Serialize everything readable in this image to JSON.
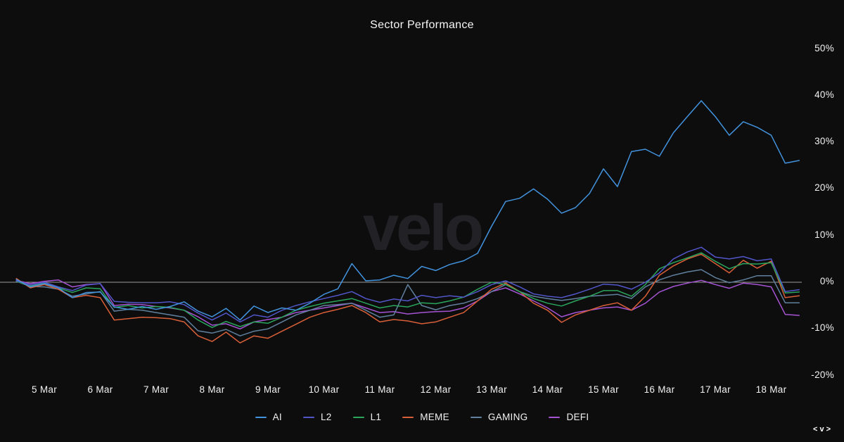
{
  "header": {
    "title": "Sector Performance"
  },
  "watermark_text": "velo",
  "brand_mark_text": "<v>",
  "theme": {
    "background": "#0d0d0e",
    "text_color": "#f2f2f2",
    "zero_line_color": "#9a9a9a",
    "watermark_color": "#222226"
  },
  "chart_data": {
    "type": "line",
    "title": "Sector Performance",
    "xlabel": "",
    "ylabel": "",
    "y_unit": "%",
    "ylim": [
      -20,
      50
    ],
    "grid": "zero-line-only",
    "legend_position": "bottom-center",
    "y_ticks": [
      50,
      40,
      30,
      20,
      10,
      0,
      -10,
      -20
    ],
    "x_ticks": [
      {
        "label": "5 Mar",
        "day": 5
      },
      {
        "label": "6 Mar",
        "day": 6
      },
      {
        "label": "7 Mar",
        "day": 7
      },
      {
        "label": "8 Mar",
        "day": 8
      },
      {
        "label": "9 Mar",
        "day": 9
      },
      {
        "label": "10 Mar",
        "day": 10
      },
      {
        "label": "11 Mar",
        "day": 11
      },
      {
        "label": "12 Mar",
        "day": 12
      },
      {
        "label": "13 Mar",
        "day": 13
      },
      {
        "label": "14 Mar",
        "day": 14
      },
      {
        "label": "15 Mar",
        "day": 15
      },
      {
        "label": "16 Mar",
        "day": 16
      },
      {
        "label": "17 Mar",
        "day": 17
      },
      {
        "label": "18 Mar",
        "day": 18
      }
    ],
    "x_start_day": 4.5,
    "x_step_days": 0.25,
    "series": [
      {
        "name": "AI",
        "color": "#4293dd",
        "values": [
          0.6,
          -1,
          -0.3,
          -1.2,
          -3.3,
          -2.2,
          -2.1,
          -5.3,
          -5.8,
          -5.2,
          -5.8,
          -5.2,
          -4.2,
          -6.2,
          -7.4,
          -5.6,
          -8.1,
          -5.1,
          -6.5,
          -5.5,
          -6,
          -4.5,
          -2.6,
          -1.4,
          4,
          0.3,
          0.5,
          1.5,
          0.8,
          3.4,
          2.5,
          3.8,
          4.6,
          6.2,
          12,
          17.3,
          18,
          20,
          17.8,
          14.8,
          16,
          19,
          24.3,
          20.5,
          28,
          28.5,
          27,
          32,
          35.5,
          38.9,
          35.5,
          31.5,
          34.4,
          33.2,
          31.5,
          25.5,
          26.1
        ]
      },
      {
        "name": "L2",
        "color": "#5156c8",
        "values": [
          0.3,
          -0.6,
          0,
          -1,
          -1.8,
          -0.6,
          -0.3,
          -4.1,
          -4.3,
          -4.4,
          -4.4,
          -4.2,
          -4.8,
          -6.6,
          -8.1,
          -6.6,
          -8.5,
          -7,
          -7.5,
          -6,
          -5,
          -4.2,
          -3.5,
          -2.8,
          -2,
          -3.5,
          -4.3,
          -3.6,
          -4,
          -2.8,
          -3.3,
          -2.9,
          -3.2,
          -2,
          -0.5,
          0.3,
          -1,
          -2.5,
          -3,
          -3.3,
          -2.5,
          -1.5,
          -0.4,
          -0.6,
          -1.5,
          0,
          2,
          5,
          6.5,
          7.5,
          5.4,
          5,
          5.5,
          4.6,
          5,
          -2,
          -1.6
        ]
      },
      {
        "name": "L1",
        "color": "#2aa55c",
        "values": [
          0.2,
          -0.8,
          -0.2,
          -1.2,
          -2.2,
          -1.2,
          -1.4,
          -5.4,
          -5,
          -5.5,
          -5.2,
          -5.4,
          -6,
          -8.1,
          -9.7,
          -8.4,
          -9.5,
          -8.5,
          -8.8,
          -7.5,
          -6,
          -5.2,
          -4.5,
          -4,
          -3.5,
          -4.5,
          -5.5,
          -5,
          -5.3,
          -4.4,
          -4.6,
          -4,
          -3.2,
          -1.5,
          0,
          -0.5,
          -2,
          -3.5,
          -4.5,
          -5.1,
          -4,
          -3,
          -1.8,
          -1.8,
          -3,
          -0.5,
          2.9,
          4.2,
          5.2,
          6.3,
          4.5,
          2.9,
          4,
          3.9,
          4.2,
          -2.3,
          -2.1
        ]
      },
      {
        "name": "MEME",
        "color": "#d95f38",
        "values": [
          0.8,
          -1.2,
          -0.5,
          -1.5,
          -3.3,
          -2.8,
          -3.3,
          -8.1,
          -7.8,
          -7.5,
          -7.6,
          -7.8,
          -8.5,
          -11.5,
          -12.7,
          -10.7,
          -13,
          -11.5,
          -12,
          -10.5,
          -9,
          -7.5,
          -6.5,
          -5.8,
          -5,
          -6.5,
          -8.5,
          -8,
          -8.3,
          -8.9,
          -8.5,
          -7.5,
          -6.5,
          -4,
          -1.5,
          -0.2,
          -2,
          -4.5,
          -6,
          -8.6,
          -7,
          -6,
          -5,
          -4.4,
          -6,
          -3,
          1.5,
          3.5,
          5,
          6,
          4,
          2,
          4.7,
          3,
          4.5,
          -3.3,
          -2.9
        ]
      },
      {
        "name": "GAMING",
        "color": "#61809e",
        "values": [
          0.2,
          -0.9,
          -1,
          -1.5,
          -3,
          -2.5,
          -2,
          -6.2,
          -5.8,
          -6,
          -6.5,
          -7,
          -7.5,
          -10.4,
          -10.9,
          -10.1,
          -11.5,
          -10.5,
          -10,
          -8.5,
          -7,
          -6,
          -5,
          -4.8,
          -4.5,
          -6,
          -7.5,
          -7,
          -0.5,
          -5,
          -5.9,
          -5,
          -4.5,
          -3.5,
          -2,
          -0.5,
          -2,
          -3,
          -3.5,
          -3.9,
          -3.5,
          -3,
          -2.8,
          -2.6,
          -3.5,
          -1,
          0.5,
          1.5,
          2.2,
          2.7,
          1,
          -0.1,
          0.5,
          1.4,
          1.4,
          -4.4,
          -4.4
        ]
      },
      {
        "name": "DEFI",
        "color": "#a553d2",
        "values": [
          0.4,
          -0.3,
          0.2,
          0.5,
          -1,
          -0.5,
          -0.3,
          -5,
          -4.7,
          -4.8,
          -5.2,
          -5.5,
          -6,
          -7.4,
          -9.2,
          -8.9,
          -10,
          -8.5,
          -8,
          -7.5,
          -6.5,
          -6,
          -5.5,
          -5,
          -4.5,
          -5.5,
          -6.5,
          -6.3,
          -6.8,
          -6.5,
          -6.3,
          -6.2,
          -5.5,
          -4,
          -2,
          -1.2,
          -2.5,
          -4,
          -5.5,
          -7.4,
          -6.5,
          -6,
          -5.5,
          -5.3,
          -6,
          -4.5,
          -2.1,
          -0.9,
          -0.2,
          0.4,
          -0.5,
          -1.3,
          -0.2,
          -0.5,
          -1,
          -6.9,
          -7.1
        ]
      }
    ]
  }
}
